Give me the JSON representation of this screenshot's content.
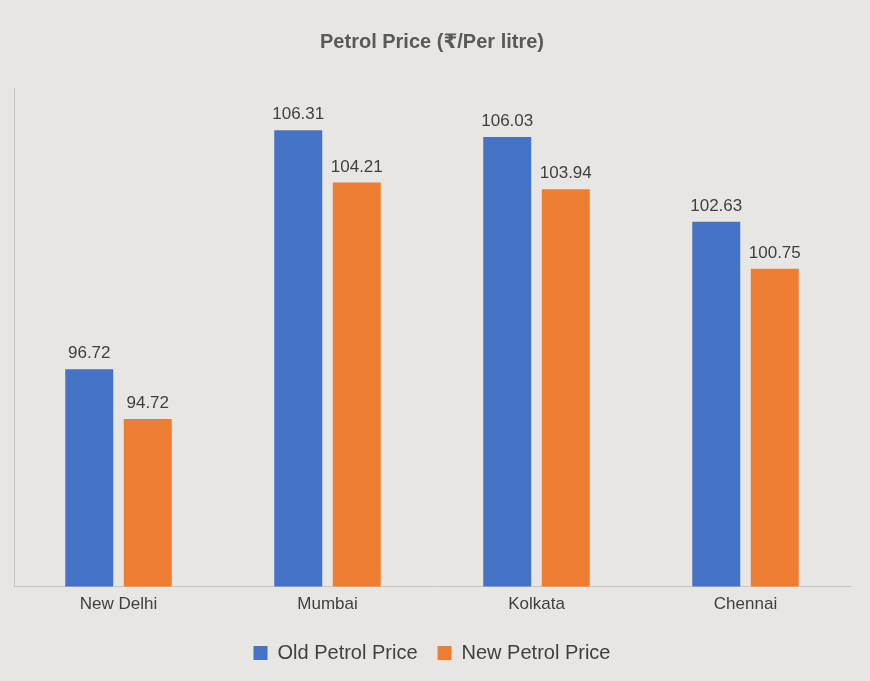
{
  "chart_data": {
    "type": "bar",
    "title": "Petrol Price (₹/Per litre)",
    "categories": [
      "New Delhi",
      "Mumbai",
      "Kolkata",
      "Chennai"
    ],
    "series": [
      {
        "name": "Old Petrol Price",
        "color": "#4472c4",
        "values": [
          96.72,
          106.31,
          106.03,
          102.63
        ]
      },
      {
        "name": "New Petrol Price",
        "color": "#ed7d31",
        "values": [
          94.72,
          104.21,
          103.94,
          100.75
        ]
      }
    ],
    "ylim": [
      88,
      108
    ],
    "grid": false,
    "legend": "bottom",
    "data_labels": true,
    "tick_labels": "x"
  }
}
